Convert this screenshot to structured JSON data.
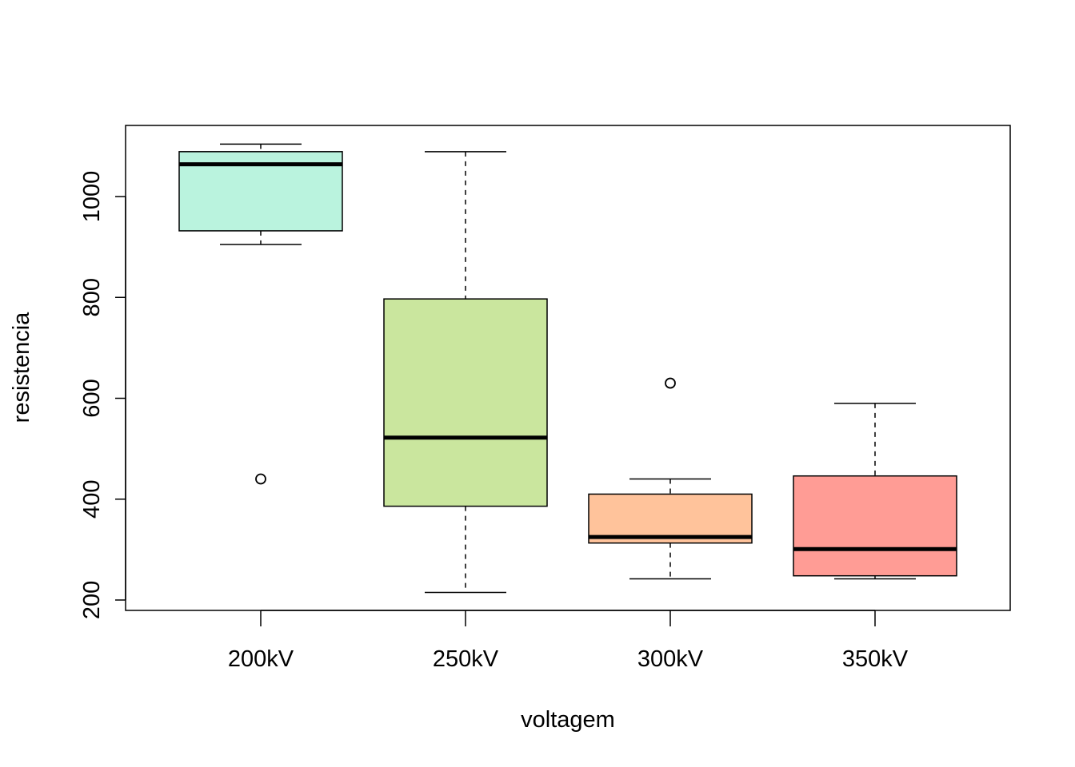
{
  "chart_data": {
    "type": "boxplot",
    "title": "",
    "xlabel": "voltagem",
    "ylabel": "resistencia",
    "ylim": [
      180,
      1115
    ],
    "yticks": [
      200,
      400,
      600,
      800,
      1000
    ],
    "ytick_labels": [
      "200",
      "400",
      "600",
      "800",
      "1000"
    ],
    "grid": false,
    "legend": "none",
    "categories": [
      "200kV",
      "250kV",
      "300kV",
      "350kV"
    ],
    "series": [
      {
        "category": "200kV",
        "lower_whisker": 905,
        "q1": 932,
        "median": 1064,
        "q3": 1089,
        "upper_whisker": 1104,
        "outliers": [
          440
        ],
        "color": "#BAF3DE"
      },
      {
        "category": "250kV",
        "lower_whisker": 215,
        "q1": 386,
        "median": 522,
        "q3": 797,
        "upper_whisker": 1089,
        "outliers": [],
        "color": "#CAE69E"
      },
      {
        "category": "300kV",
        "lower_whisker": 242,
        "q1": 313,
        "median": 325,
        "q3": 410,
        "upper_whisker": 440,
        "outliers": [
          630
        ],
        "color": "#FFC39B"
      },
      {
        "category": "350kV",
        "lower_whisker": 242,
        "q1": 248,
        "median": 301,
        "q3": 446,
        "upper_whisker": 590,
        "outliers": [],
        "color": "#FF9C95"
      }
    ]
  }
}
